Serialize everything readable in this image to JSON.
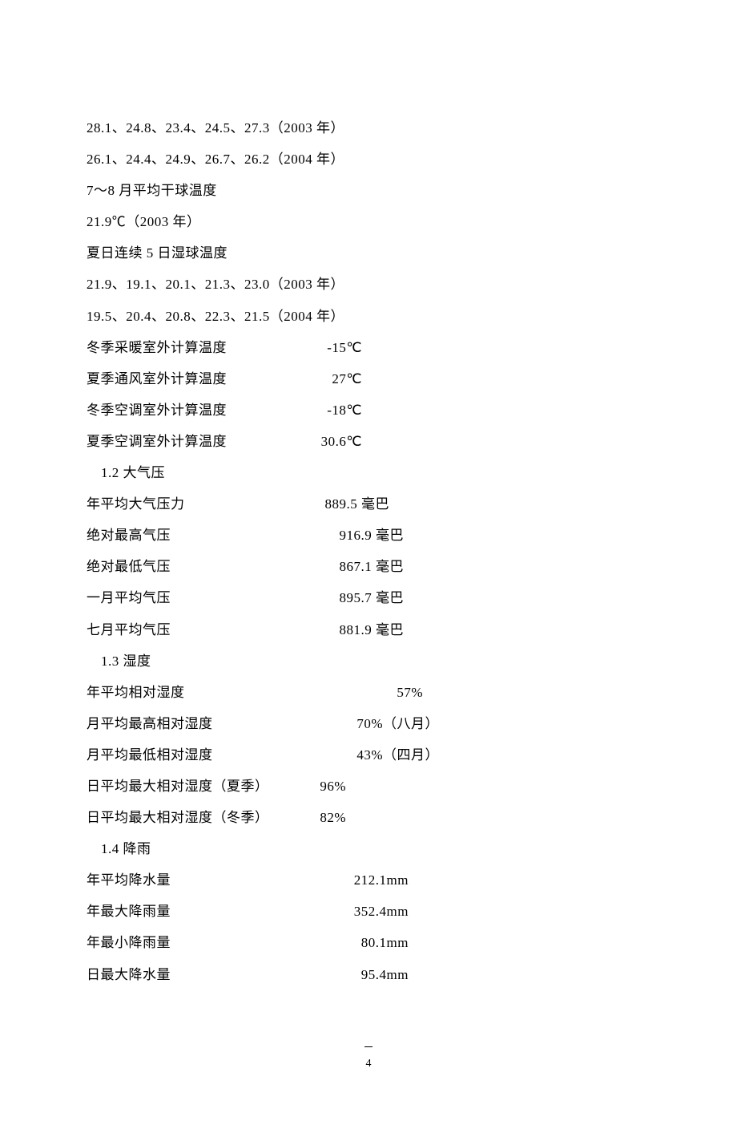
{
  "lines_top": [
    "28.1、24.8、23.4、24.5、27.3（2003 年）",
    "26.1、24.4、24.9、26.7、26.2（2004 年）",
    "7～8 月平均干球温度",
    "21.9℃（2003 年）",
    "夏日连续 5 日湿球温度",
    "21.9、19.1、20.1、21.3、23.0（2003 年）",
    "19.5、20.4、20.8、22.3、21.5（2004 年）"
  ],
  "rows_temp": [
    {
      "label": "冬季采暖室外计算温度",
      "value": "-15℃",
      "vwidth": 84
    },
    {
      "label": "夏季通风室外计算温度",
      "value": "27℃",
      "vwidth": 84
    },
    {
      "label": "冬季空调室外计算温度",
      "value": "-18℃",
      "vwidth": 84
    },
    {
      "label": "夏季空调室外计算温度",
      "value": "30.6℃",
      "vwidth": 84
    }
  ],
  "section_12": "1.2 大气压",
  "rows_pressure": [
    {
      "label": "年平均大气压力",
      "value": "889.5 毫巴",
      "vwidth": 118
    },
    {
      "label": "绝对最高气压",
      "value": "916.9 毫巴",
      "vwidth": 136
    },
    {
      "label": "绝对最低气压",
      "value": "867.1 毫巴",
      "vwidth": 136
    },
    {
      "label": "一月平均气压",
      "value": "895.7 毫巴",
      "vwidth": 136
    },
    {
      "label": "七月平均气压",
      "value": "881.9 毫巴",
      "vwidth": 136
    }
  ],
  "section_13": "1.3 湿度",
  "rows_humidity": [
    {
      "label": "年平均相对湿度",
      "value": "57%",
      "vwidth": 160,
      "extra": ""
    },
    {
      "label": "月平均最高相对湿度",
      "value": "70%（八月）",
      "vwidth": 180,
      "extra": ""
    },
    {
      "label": "月平均最低相对湿度",
      "value": "43%（四月）",
      "vwidth": 180,
      "extra": ""
    },
    {
      "label": "日平均最大相对湿度（夏季）",
      "value": "96%",
      "vwidth": 64,
      "extra": ""
    },
    {
      "label": "日平均最大相对湿度（冬季）",
      "value": "82%",
      "vwidth": 64,
      "extra": ""
    }
  ],
  "section_14": "1.4 降雨",
  "rows_rain": [
    {
      "label": "年平均降水量",
      "value": "212.1mm",
      "vwidth": 142
    },
    {
      "label": "年最大降雨量",
      "value": "352.4mm",
      "vwidth": 142
    },
    {
      "label": "年最小降雨量",
      "value": "80.1mm",
      "vwidth": 142
    },
    {
      "label": "日最大降水量",
      "value": "95.4mm",
      "vwidth": 142
    }
  ],
  "page_number": "4",
  "layout": {
    "label_width_temp": 260,
    "label_width_pressure": 260,
    "label_width_humidity": 260,
    "label_width_rain": 260
  }
}
